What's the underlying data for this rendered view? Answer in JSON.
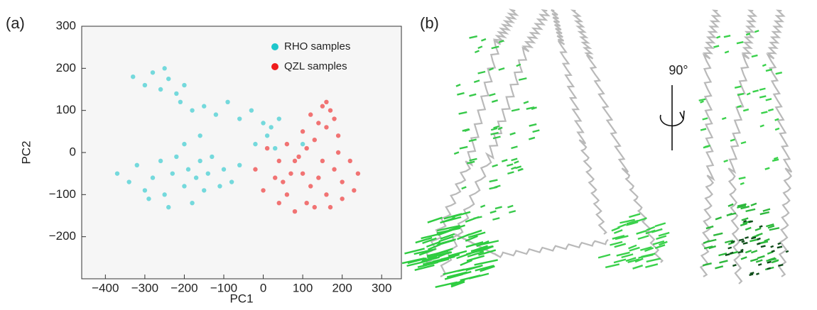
{
  "chart_data": {
    "type": "scatter",
    "panel_label": "(a)",
    "xlabel": "PC1",
    "ylabel": "PC2",
    "xlim": [
      -460,
      350
    ],
    "ylim": [
      -300,
      300
    ],
    "xticks": [
      {
        "value": -400,
        "label": "−400"
      },
      {
        "value": -300,
        "label": "−300"
      },
      {
        "value": -200,
        "label": "−200"
      },
      {
        "value": -100,
        "label": "−100"
      },
      0,
      100,
      200,
      300
    ],
    "yticks": [
      {
        "value": -200,
        "label": "−200"
      },
      {
        "value": -100,
        "label": "−100"
      },
      0,
      100,
      200,
      300
    ],
    "legend": "upper right",
    "series": [
      {
        "name": "RHO samples",
        "color": "#1ec6cb",
        "x": [
          -330,
          -300,
          -280,
          -260,
          -240,
          -220,
          -210,
          -250,
          -200,
          -180,
          -150,
          -120,
          -90,
          -60,
          -30,
          0,
          20,
          40,
          10,
          -20,
          30,
          100,
          -370,
          -340,
          -320,
          -300,
          -280,
          -260,
          -250,
          -230,
          -220,
          -200,
          -190,
          -180,
          -170,
          -160,
          -150,
          -140,
          -130,
          -110,
          -100,
          -80,
          -60,
          -240,
          -290,
          -160,
          -200
        ],
        "y": [
          180,
          160,
          190,
          150,
          175,
          140,
          120,
          200,
          160,
          100,
          110,
          90,
          120,
          80,
          100,
          70,
          60,
          80,
          40,
          20,
          10,
          20,
          -50,
          -70,
          -30,
          -90,
          -60,
          -20,
          -100,
          -50,
          -10,
          -80,
          -40,
          -120,
          -60,
          -20,
          -90,
          -50,
          -10,
          -80,
          -40,
          -70,
          -30,
          -130,
          -110,
          40,
          20
        ]
      },
      {
        "name": "QZL samples",
        "color": "#ee1c1c",
        "x": [
          100,
          120,
          140,
          150,
          160,
          170,
          180,
          190,
          130,
          160,
          80,
          100,
          120,
          140,
          160,
          180,
          200,
          220,
          240,
          60,
          80,
          110,
          30,
          0,
          -20,
          40,
          10,
          60,
          90,
          130,
          170,
          200,
          50,
          70,
          230,
          190,
          150,
          110,
          40
        ],
        "y": [
          50,
          90,
          70,
          110,
          60,
          100,
          80,
          40,
          30,
          120,
          -20,
          -50,
          -80,
          -60,
          -100,
          -40,
          -70,
          -20,
          -50,
          -100,
          -140,
          -120,
          -60,
          -90,
          -40,
          -20,
          10,
          20,
          -10,
          -130,
          -130,
          -110,
          -70,
          -50,
          -90,
          0,
          -20,
          10,
          -120
        ]
      }
    ]
  },
  "structure_panel": {
    "panel_label": "(b)",
    "rotation_label": "90°"
  }
}
